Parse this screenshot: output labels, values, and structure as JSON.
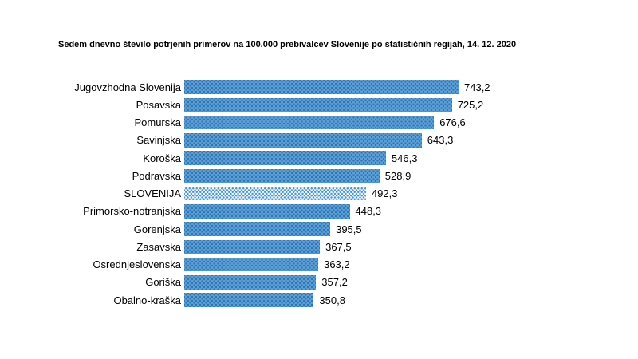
{
  "chart_data": {
    "type": "bar",
    "orientation": "horizontal",
    "title": "Sedem dnevno število potrjenih primerov na 100.000 prebivalcev Slovenije po statističnih regijah, 14. 12. 2020",
    "categories": [
      "Jugovzhodna Slovenija",
      "Posavska",
      "Pomurska",
      "Savinjska",
      "Koroška",
      "Podravska",
      "SLOVENIJA",
      "Primorsko-notranjska",
      "Gorenjska",
      "Zasavska",
      "Osrednjeslovenska",
      "Goriška",
      "Obalno-kraška"
    ],
    "values": [
      743.2,
      725.2,
      676.6,
      643.3,
      546.3,
      528.9,
      492.3,
      448.3,
      395.5,
      367.5,
      363.2,
      357.2,
      350.8
    ],
    "value_labels": [
      "743,2",
      "725,2",
      "676,6",
      "643,3",
      "546,3",
      "528,9",
      "492,3",
      "448,3",
      "395,5",
      "367,5",
      "363,2",
      "357,2",
      "350,8"
    ],
    "highlight_category": "SLOVENIJA",
    "xlabel": "",
    "ylabel": "",
    "xlim": [
      0,
      760
    ],
    "grid": false,
    "legend": "none",
    "bar_pattern": "dotted",
    "colors": {
      "bar_fill": "#5b9fd6",
      "bar_dot": "#2f77b3",
      "highlight_fill": "#ffffff",
      "highlight_dot": "#4a97d2",
      "text": "#000000",
      "background": "#ffffff"
    }
  }
}
